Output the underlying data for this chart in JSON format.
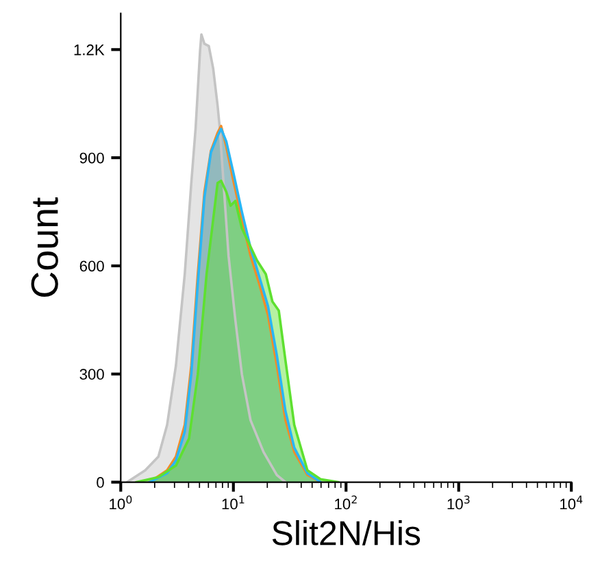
{
  "chart_data": {
    "type": "area",
    "xlabel": "Slit2N/His",
    "ylabel": "Count",
    "log": "x",
    "xlim": [
      1,
      10000
    ],
    "xticks": [
      {
        "value": 1,
        "label": "10$^{0}$"
      },
      {
        "value": 10,
        "label": "10$^{1}$"
      },
      {
        "value": 100,
        "label": "10$^{2}$"
      },
      {
        "value": 1000,
        "label": "10$^{3}$"
      },
      {
        "value": 10000,
        "label": "10$^{4}$"
      }
    ],
    "ylim": [
      0,
      1300
    ],
    "yticks": [
      0,
      300,
      600,
      900,
      {
        "value": 1200,
        "label": "1.2K"
      }
    ],
    "grid": false,
    "legend": false,
    "series": [
      {
        "color": "#c4c4c4",
        "x": [
          1.15,
          1.65,
          2.16,
          2.58,
          3.09,
          3.7,
          4.23,
          4.62,
          5.06,
          5.2,
          5.53,
          6.05,
          6.62,
          7.24,
          7.57,
          8.28,
          9.06,
          10.4,
          11.9,
          14.2,
          18.5,
          24.3,
          29
        ],
        "values": [
          1,
          33,
          71,
          159,
          324,
          577,
          830,
          982,
          1197,
          1242,
          1216,
          1210,
          1147,
          1045,
          982,
          805,
          628,
          451,
          299,
          172,
          84,
          20,
          0
        ]
      },
      {
        "color": "#f28c28",
        "x": [
          1.8,
          2.58,
          3.09,
          3.7,
          4.23,
          4.83,
          5.53,
          6.32,
          7.24,
          7.78,
          8.65,
          9.89,
          11.9,
          14.2,
          16.9,
          20.3,
          24.3,
          29,
          34.7,
          45.4,
          59.4
        ],
        "values": [
          0,
          33,
          71,
          159,
          324,
          577,
          805,
          919,
          969,
          988,
          931,
          843,
          729,
          628,
          552,
          463,
          324,
          172,
          84,
          20,
          0
        ]
      },
      {
        "color": "#29b6f6",
        "x": [
          1.8,
          2.58,
          3.09,
          3.7,
          4.23,
          4.83,
          5.53,
          6.32,
          7.24,
          7.78,
          8.65,
          9.89,
          11.9,
          14.2,
          16.9,
          20.3,
          24.3,
          29,
          34.7,
          45.4,
          59.4
        ],
        "values": [
          0,
          25,
          60,
          140,
          300,
          550,
          790,
          915,
          960,
          980,
          945,
          865,
          750,
          650,
          572,
          488,
          352,
          197,
          96,
          25,
          0
        ]
      },
      {
        "color": "#5ee030",
        "x": [
          1.38,
          2.16,
          3.09,
          4.04,
          4.83,
          5.78,
          6.62,
          7.24,
          7.78,
          8.65,
          9.46,
          10.4,
          11.9,
          14.2,
          16.2,
          19.4,
          22.2,
          25.3,
          29,
          34.7,
          45.4,
          59.4,
          85
        ],
        "values": [
          0,
          14,
          46,
          121,
          299,
          577,
          729,
          830,
          836,
          805,
          767,
          780,
          704,
          653,
          615,
          577,
          501,
          476,
          337,
          159,
          33,
          8,
          0
        ]
      }
    ]
  }
}
